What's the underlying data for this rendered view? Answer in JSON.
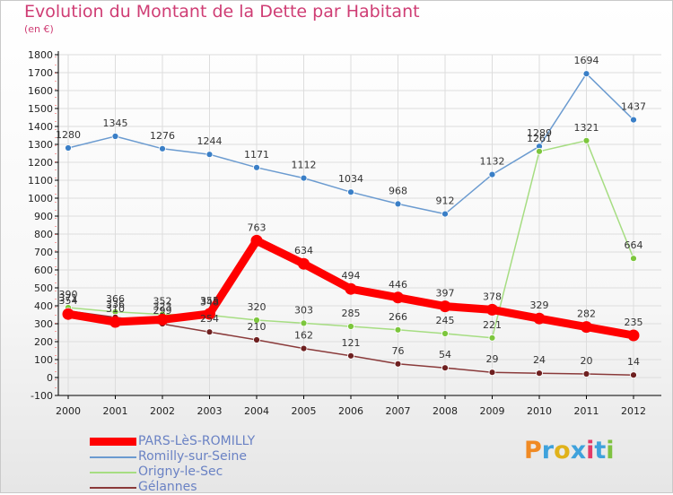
{
  "header": {
    "title": "Evolution du Montant de la Dette par Habitant",
    "subtitle": "(en €)"
  },
  "logo": {
    "text": "Proxiti",
    "letter_colors": [
      "#f08a24",
      "#3fa2dc",
      "#e0b21a",
      "#3fa2dc",
      "#e23a68",
      "#3fa2dc",
      "#7fc241"
    ]
  },
  "chart_data": {
    "type": "line",
    "x": [
      2000,
      2001,
      2002,
      2003,
      2004,
      2005,
      2006,
      2007,
      2008,
      2009,
      2010,
      2011,
      2012
    ],
    "ylim": [
      -100,
      1800
    ],
    "yticks": [
      -100,
      0,
      100,
      200,
      300,
      400,
      500,
      600,
      700,
      800,
      900,
      1000,
      1100,
      1200,
      1300,
      1400,
      1500,
      1600,
      1700,
      1800
    ],
    "grid": true,
    "legend_position": "bottom-left",
    "series": [
      {
        "name": "Romilly-sur-Seine",
        "color": "#6b9bd0",
        "marker": "#3a7fc7",
        "values": [
          1280,
          1345,
          1276,
          1244,
          1171,
          1112,
          1034,
          968,
          912,
          1132,
          1289,
          1694,
          1437
        ],
        "labels": [
          "1280",
          "1345",
          "1276",
          "1244",
          "1171",
          "1112",
          "1034",
          "968",
          "912",
          "1132",
          "1289",
          "1694",
          "1437"
        ]
      },
      {
        "name": "Origny-le-Sec",
        "color": "#a6dd82",
        "marker": "#7cc63c",
        "values": [
          390,
          366,
          352,
          348,
          320,
          303,
          285,
          266,
          245,
          221,
          1261,
          1321,
          664
        ],
        "labels": [
          "390",
          "366",
          "352",
          "348",
          "320",
          "303",
          "285",
          "266",
          "245",
          "221",
          "1261",
          "1321",
          "664"
        ]
      },
      {
        "name": "Gélannes",
        "color": "#8a3a3a",
        "marker": "#6e2020",
        "values": [
          371,
          336,
          299,
          254,
          210,
          162,
          121,
          76,
          54,
          29,
          24,
          20,
          14
        ],
        "labels": [
          "371",
          "336",
          "299",
          "254",
          "210",
          "162",
          "121",
          "76",
          "54",
          "29",
          "24",
          "20",
          "14"
        ]
      },
      {
        "name": "PARS-LèS-ROMILLY",
        "color": "#ff0000",
        "marker": "#ff0000",
        "values": [
          354,
          310,
          323,
          355,
          763,
          634,
          494,
          446,
          397,
          378,
          329,
          282,
          235
        ],
        "labels": [
          "354",
          "310",
          "323",
          "355",
          "763",
          "634",
          "494",
          "446",
          "397",
          "378",
          "329",
          "282",
          "235"
        ]
      }
    ],
    "legend_order": [
      "PARS-LèS-ROMILLY",
      "Romilly-sur-Seine",
      "Origny-le-Sec",
      "Gélannes"
    ]
  }
}
